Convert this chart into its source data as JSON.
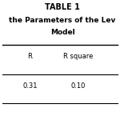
{
  "title_line1": "TABLE 1",
  "title_line2": "the Parameters of the Lev",
  "title_line3": "Model",
  "col_headers": [
    "R",
    "R square"
  ],
  "row_values": [
    "0.31",
    "0.10"
  ],
  "bg_color": "#ffffff",
  "text_color": "#000000",
  "title_fontsize": 7.0,
  "subtitle_fontsize": 6.5,
  "header_fontsize": 6.0,
  "value_fontsize": 6.0
}
